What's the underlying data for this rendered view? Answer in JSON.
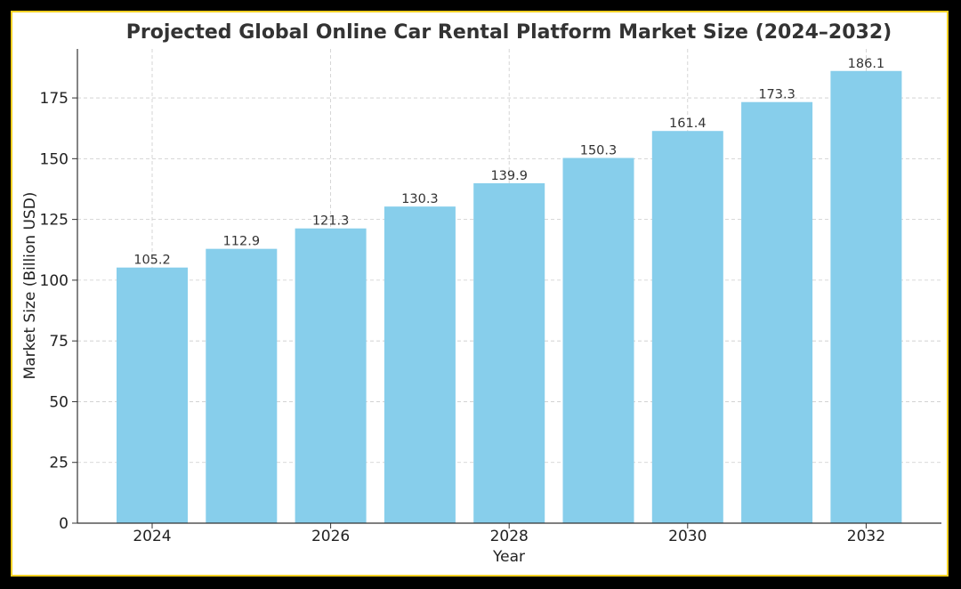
{
  "chart_data": {
    "type": "bar",
    "title": "Projected Global Online Car Rental Platform Market Size (2024–2032)",
    "xlabel": "Year",
    "ylabel": "Market Size (Billion USD)",
    "categories": [
      2024,
      2025,
      2026,
      2027,
      2028,
      2029,
      2030,
      2031,
      2032
    ],
    "values": [
      105.2,
      112.9,
      121.3,
      130.3,
      139.9,
      150.3,
      161.4,
      173.3,
      186.1
    ],
    "value_labels": [
      "105.2",
      "112.9",
      "121.3",
      "130.3",
      "139.9",
      "150.3",
      "161.4",
      "173.3",
      "186.1"
    ],
    "x_ticks": [
      "2024",
      "2026",
      "2028",
      "2030",
      "2032"
    ],
    "y_ticks": [
      "0",
      "25",
      "50",
      "75",
      "100",
      "125",
      "150",
      "175"
    ],
    "ylim": [
      0,
      195
    ],
    "grid": true,
    "colors": {
      "bar": "#87ceeb",
      "grid": "#cccccc",
      "text": "#333333",
      "border": "#f2d024"
    }
  }
}
